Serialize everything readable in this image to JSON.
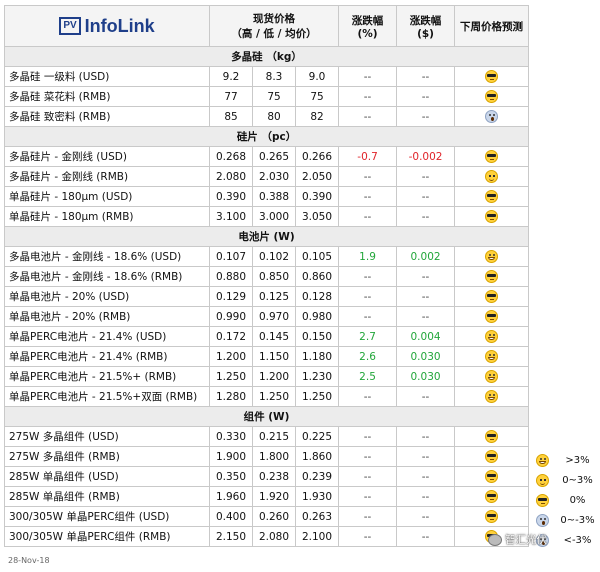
{
  "brand": {
    "logo_badge": "PV",
    "logo_text": "InfoLink"
  },
  "header": {
    "spot_price_line1": "现货价格",
    "spot_price_line2": "（高 / 低 / 均价）",
    "change_pct_line1": "涨跌幅",
    "change_pct_line2": "(%)",
    "change_abs_line1": "涨跌幅",
    "change_abs_line2": "($)",
    "forecast": "下周价格预测"
  },
  "sections": [
    {
      "title": "多晶硅 （kg）",
      "rows": [
        {
          "name": "多晶硅 一级料 (USD)",
          "high": "9.2",
          "low": "8.3",
          "avg": "9.0",
          "pct": "--",
          "abs": "--",
          "face": "sunglasses"
        },
        {
          "name": "多晶硅 菜花料 (RMB)",
          "high": "77",
          "low": "75",
          "avg": "75",
          "pct": "--",
          "abs": "--",
          "face": "sunglasses"
        },
        {
          "name": "多晶硅 致密料 (RMB)",
          "high": "85",
          "low": "80",
          "avg": "82",
          "pct": "--",
          "abs": "--",
          "face": "scream"
        }
      ]
    },
    {
      "title": "硅片 （pc）",
      "rows": [
        {
          "name": "多晶硅片 - 金刚线 (USD)",
          "high": "0.268",
          "low": "0.265",
          "avg": "0.266",
          "pct": "-0.7",
          "abs": "-0.002",
          "face": "sunglasses"
        },
        {
          "name": "多晶硅片 - 金刚线 (RMB)",
          "high": "2.080",
          "low": "2.030",
          "avg": "2.050",
          "pct": "--",
          "abs": "--",
          "face": "smile"
        },
        {
          "name": "单晶硅片 - 180µm (USD)",
          "high": "0.390",
          "low": "0.388",
          "avg": "0.390",
          "pct": "--",
          "abs": "--",
          "face": "sunglasses"
        },
        {
          "name": "单晶硅片 - 180µm (RMB)",
          "high": "3.100",
          "low": "3.000",
          "avg": "3.050",
          "pct": "--",
          "abs": "--",
          "face": "sunglasses"
        }
      ]
    },
    {
      "title": "电池片 (W)",
      "rows": [
        {
          "name": "多晶电池片 - 金刚线 - 18.6% (USD)",
          "high": "0.107",
          "low": "0.102",
          "avg": "0.105",
          "pct": "1.9",
          "abs": "0.002",
          "face": "grin"
        },
        {
          "name": "多晶电池片 - 金刚线 - 18.6% (RMB)",
          "high": "0.880",
          "low": "0.850",
          "avg": "0.860",
          "pct": "--",
          "abs": "--",
          "face": "sunglasses"
        },
        {
          "name": "单晶电池片 - 20% (USD)",
          "high": "0.129",
          "low": "0.125",
          "avg": "0.128",
          "pct": "--",
          "abs": "--",
          "face": "sunglasses"
        },
        {
          "name": "单晶电池片 - 20% (RMB)",
          "high": "0.990",
          "low": "0.970",
          "avg": "0.980",
          "pct": "--",
          "abs": "--",
          "face": "sunglasses"
        },
        {
          "name": "单晶PERC电池片 - 21.4% (USD)",
          "high": "0.172",
          "low": "0.145",
          "avg": "0.150",
          "pct": "2.7",
          "abs": "0.004",
          "face": "grin"
        },
        {
          "name": "单晶PERC电池片 - 21.4% (RMB)",
          "high": "1.200",
          "low": "1.150",
          "avg": "1.180",
          "pct": "2.6",
          "abs": "0.030",
          "face": "grin"
        },
        {
          "name": "单晶PERC电池片 - 21.5%+ (RMB)",
          "high": "1.250",
          "low": "1.200",
          "avg": "1.230",
          "pct": "2.5",
          "abs": "0.030",
          "face": "grin"
        },
        {
          "name": "单晶PERC电池片 - 21.5%+双面 (RMB)",
          "high": "1.280",
          "low": "1.250",
          "avg": "1.250",
          "pct": "--",
          "abs": "--",
          "face": "grin"
        }
      ]
    },
    {
      "title": "组件 (W)",
      "rows": [
        {
          "name": "275W 多晶组件 (USD)",
          "high": "0.330",
          "low": "0.215",
          "avg": "0.225",
          "pct": "--",
          "abs": "--",
          "face": "sunglasses"
        },
        {
          "name": "275W 多晶组件 (RMB)",
          "high": "1.900",
          "low": "1.800",
          "avg": "1.860",
          "pct": "--",
          "abs": "--",
          "face": "sunglasses"
        },
        {
          "name": "285W 单晶组件 (USD)",
          "high": "0.350",
          "low": "0.238",
          "avg": "0.239",
          "pct": "--",
          "abs": "--",
          "face": "sunglasses"
        },
        {
          "name": "285W 单晶组件 (RMB)",
          "high": "1.960",
          "low": "1.920",
          "avg": "1.930",
          "pct": "--",
          "abs": "--",
          "face": "sunglasses"
        },
        {
          "name": "300/305W 单晶PERC组件 (USD)",
          "high": "0.400",
          "low": "0.260",
          "avg": "0.263",
          "pct": "--",
          "abs": "--",
          "face": "sunglasses"
        },
        {
          "name": "300/305W 单晶PERC组件 (RMB)",
          "high": "2.150",
          "low": "2.080",
          "avg": "2.100",
          "pct": "--",
          "abs": "--",
          "face": "sunglasses"
        }
      ]
    }
  ],
  "legend": [
    {
      "face": "grin",
      "label": ">3%"
    },
    {
      "face": "smile",
      "label": "0~3%"
    },
    {
      "face": "sunglasses",
      "label": "0%"
    },
    {
      "face": "scream",
      "label": "0~-3%"
    },
    {
      "face": "scream",
      "label": "<-3%"
    }
  ],
  "footer": {
    "date": "28-Nov-18",
    "watermark": "智汇光伏"
  },
  "colors": {
    "negative": "#e0242a",
    "positive": "#22a63a",
    "brand": "#1f3f8a"
  }
}
